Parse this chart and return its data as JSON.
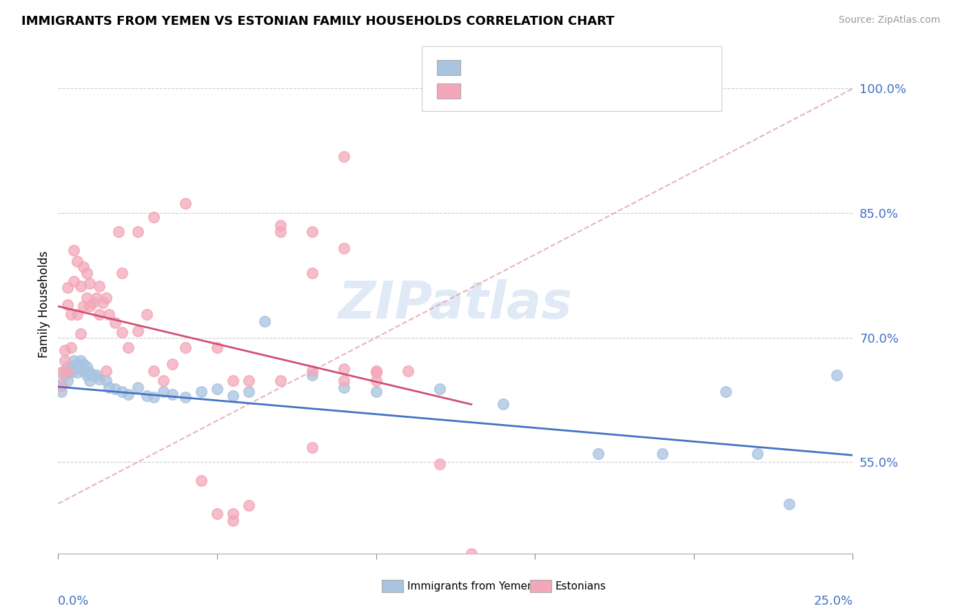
{
  "title": "IMMIGRANTS FROM YEMEN VS ESTONIAN FAMILY HOUSEHOLDS CORRELATION CHART",
  "source_text": "Source: ZipAtlas.com",
  "ylabel": "Family Households",
  "ylabel_ticks": [
    "55.0%",
    "70.0%",
    "85.0%",
    "100.0%"
  ],
  "ylabel_tick_vals": [
    0.55,
    0.7,
    0.85,
    1.0
  ],
  "xlim": [
    0.0,
    0.25
  ],
  "ylim": [
    0.44,
    1.04
  ],
  "legend_bottom_label1": "Immigrants from Yemen",
  "legend_bottom_label2": "Estonians",
  "blue_color": "#a8c4e0",
  "pink_color": "#f4a7b9",
  "trend_blue": "#4472c4",
  "trend_pink": "#d05070",
  "diag_color": "#e0a0b0",
  "watermark": "ZIPatlas",
  "blue_scatter_x": [
    0.001,
    0.001,
    0.002,
    0.002,
    0.003,
    0.003,
    0.004,
    0.004,
    0.005,
    0.005,
    0.006,
    0.006,
    0.007,
    0.007,
    0.008,
    0.008,
    0.009,
    0.009,
    0.01,
    0.01,
    0.011,
    0.012,
    0.013,
    0.015,
    0.016,
    0.018,
    0.02,
    0.022,
    0.025,
    0.028,
    0.03,
    0.033,
    0.036,
    0.04,
    0.045,
    0.05,
    0.055,
    0.06,
    0.065,
    0.08,
    0.09,
    0.1,
    0.12,
    0.14,
    0.17,
    0.19,
    0.21,
    0.22,
    0.23,
    0.245
  ],
  "blue_scatter_y": [
    0.645,
    0.635,
    0.66,
    0.655,
    0.665,
    0.648,
    0.665,
    0.658,
    0.672,
    0.662,
    0.668,
    0.658,
    0.672,
    0.662,
    0.668,
    0.66,
    0.665,
    0.655,
    0.658,
    0.648,
    0.655,
    0.655,
    0.65,
    0.648,
    0.64,
    0.638,
    0.635,
    0.632,
    0.64,
    0.63,
    0.628,
    0.635,
    0.632,
    0.628,
    0.635,
    0.638,
    0.63,
    0.635,
    0.72,
    0.655,
    0.64,
    0.635,
    0.638,
    0.62,
    0.56,
    0.56,
    0.635,
    0.56,
    0.5,
    0.655
  ],
  "pink_scatter_x": [
    0.001,
    0.001,
    0.002,
    0.002,
    0.003,
    0.003,
    0.003,
    0.004,
    0.004,
    0.005,
    0.005,
    0.006,
    0.006,
    0.007,
    0.007,
    0.008,
    0.008,
    0.009,
    0.009,
    0.01,
    0.01,
    0.011,
    0.012,
    0.013,
    0.013,
    0.014,
    0.015,
    0.016,
    0.018,
    0.019,
    0.02,
    0.022,
    0.025,
    0.028,
    0.03,
    0.033,
    0.036,
    0.04,
    0.045,
    0.05,
    0.055,
    0.06,
    0.07,
    0.08,
    0.09,
    0.1,
    0.055,
    0.07,
    0.08,
    0.09,
    0.1,
    0.09,
    0.08,
    0.07,
    0.06,
    0.05,
    0.04,
    0.03,
    0.025,
    0.02,
    0.015,
    0.08,
    0.09,
    0.1,
    0.11,
    0.12,
    0.055,
    0.13
  ],
  "pink_scatter_y": [
    0.658,
    0.642,
    0.685,
    0.672,
    0.74,
    0.76,
    0.658,
    0.728,
    0.688,
    0.805,
    0.768,
    0.792,
    0.728,
    0.762,
    0.705,
    0.785,
    0.738,
    0.778,
    0.748,
    0.765,
    0.738,
    0.742,
    0.748,
    0.728,
    0.762,
    0.742,
    0.748,
    0.728,
    0.718,
    0.828,
    0.706,
    0.688,
    0.708,
    0.728,
    0.845,
    0.648,
    0.668,
    0.862,
    0.528,
    0.688,
    0.488,
    0.498,
    0.648,
    0.828,
    0.662,
    0.648,
    0.648,
    0.828,
    0.778,
    0.808,
    0.658,
    0.918,
    0.66,
    0.835,
    0.648,
    0.488,
    0.688,
    0.66,
    0.828,
    0.778,
    0.66,
    0.568,
    0.648,
    0.66,
    0.66,
    0.548,
    0.48,
    0.44
  ]
}
